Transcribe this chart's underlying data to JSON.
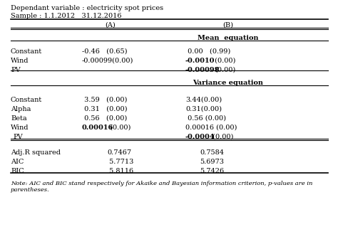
{
  "title_line1": "Dependant variable : electricity spot prices",
  "title_line2": "Sample : 1.1.2012   31.12.2016",
  "note": "Note: AIC and BIC stand respectively for Akaike and Bayesian information criterion, p-values are in\nparentheses."
}
